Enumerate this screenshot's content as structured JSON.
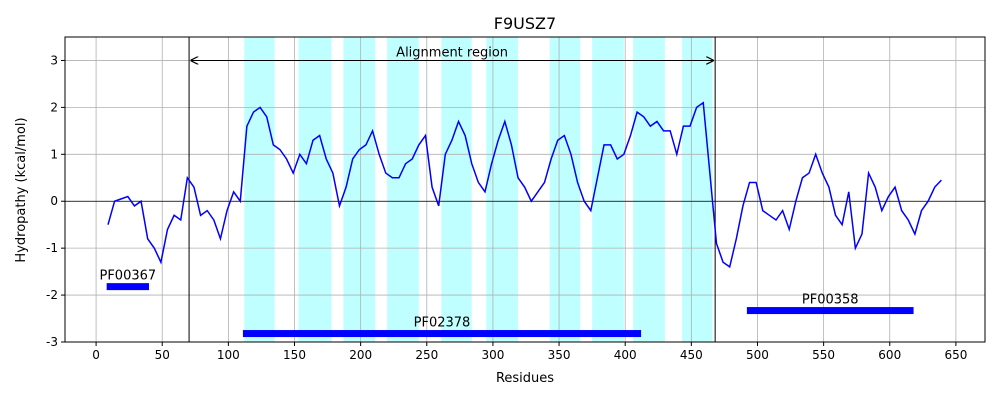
{
  "chart_data": {
    "type": "line",
    "title": "F9USZ7",
    "xlabel": "Residues",
    "ylabel": "Hydropathy (kcal/mol)",
    "xlim": [
      -23.5,
      672
    ],
    "ylim": [
      -3,
      3.5
    ],
    "xticks": [
      0,
      50,
      100,
      150,
      200,
      250,
      300,
      350,
      400,
      450,
      500,
      550,
      600,
      650
    ],
    "yticks": [
      -3,
      -2,
      -1,
      0,
      1,
      2,
      3
    ],
    "grid": true,
    "x": [
      9,
      14,
      19,
      24,
      29,
      34,
      39,
      44,
      49,
      54,
      59,
      64,
      69,
      74,
      79,
      84,
      89,
      94,
      99,
      104,
      109,
      114,
      119,
      124,
      129,
      134,
      139,
      144,
      149,
      154,
      159,
      164,
      169,
      174,
      179,
      184,
      189,
      194,
      199,
      204,
      209,
      214,
      219,
      224,
      229,
      234,
      239,
      244,
      249,
      254,
      259,
      264,
      269,
      274,
      279,
      284,
      289,
      294,
      299,
      304,
      309,
      314,
      319,
      324,
      329,
      334,
      339,
      344,
      349,
      354,
      359,
      364,
      369,
      374,
      379,
      384,
      389,
      394,
      399,
      404,
      409,
      414,
      419,
      424,
      429,
      434,
      439,
      444,
      449,
      454,
      459,
      464,
      469,
      474,
      479,
      484,
      489,
      494,
      499,
      504,
      509,
      514,
      519,
      524,
      529,
      534,
      539,
      544,
      549,
      554,
      559,
      564,
      569,
      574,
      579,
      584,
      589,
      594,
      599,
      604,
      609,
      614,
      619,
      624,
      629,
      634,
      639
    ],
    "series": [
      {
        "name": "Hydropathy",
        "color": "#0000ff",
        "values": [
          -0.5,
          0.0,
          0.05,
          0.1,
          -0.1,
          0.0,
          -0.8,
          -1.0,
          -1.3,
          -0.6,
          -0.3,
          -0.4,
          0.5,
          0.3,
          -0.3,
          -0.2,
          -0.4,
          -0.8,
          -0.2,
          0.2,
          0.0,
          1.6,
          1.9,
          2.0,
          1.8,
          1.2,
          1.1,
          0.9,
          0.6,
          1.0,
          0.8,
          1.3,
          1.4,
          0.9,
          0.6,
          -0.1,
          0.3,
          0.9,
          1.1,
          1.2,
          1.5,
          1.0,
          0.6,
          0.5,
          0.5,
          0.8,
          0.9,
          1.2,
          1.4,
          0.3,
          -0.1,
          1.0,
          1.3,
          1.7,
          1.4,
          0.8,
          0.4,
          0.2,
          0.8,
          1.3,
          1.7,
          1.2,
          0.5,
          0.3,
          0.0,
          0.2,
          0.4,
          0.9,
          1.3,
          1.4,
          1.0,
          0.4,
          0.0,
          -0.2,
          0.5,
          1.2,
          1.2,
          0.9,
          1.0,
          1.4,
          1.9,
          1.8,
          1.6,
          1.7,
          1.5,
          1.5,
          1.0,
          1.6,
          1.6,
          2.0,
          2.1,
          0.6,
          -0.9,
          -1.3,
          -1.4,
          -0.8,
          -0.1,
          0.4,
          0.4,
          -0.2,
          -0.3,
          -0.4,
          -0.2,
          -0.6,
          0.0,
          0.5,
          0.6,
          1.0,
          0.6,
          0.3,
          -0.3,
          -0.5,
          0.2,
          -1.0,
          -0.7,
          0.6,
          0.3,
          -0.2,
          0.1,
          0.3,
          -0.2,
          -0.4,
          -0.7,
          -0.2,
          0.0,
          0.3,
          0.45
        ]
      }
    ],
    "band_color": "#c0ffff",
    "bands": [
      [
        112,
        135
      ],
      [
        153,
        178
      ],
      [
        187,
        211
      ],
      [
        220,
        244
      ],
      [
        261,
        284
      ],
      [
        295,
        319
      ],
      [
        343,
        366
      ],
      [
        375,
        399
      ],
      [
        406,
        430
      ],
      [
        443,
        466
      ]
    ],
    "vlines": [
      70.3,
      468
    ],
    "annotation": {
      "text": "Alignment region",
      "x0": 70.3,
      "x1": 468,
      "y": 3
    },
    "domain_color": "#0000ff",
    "domains": [
      {
        "name": "PF00367",
        "start": 8,
        "end": 40,
        "y": -1.82
      },
      {
        "name": "PF02378",
        "start": 111,
        "end": 412,
        "y": -2.82
      },
      {
        "name": "PF00358",
        "start": 492,
        "end": 618,
        "y": -2.33
      }
    ]
  }
}
